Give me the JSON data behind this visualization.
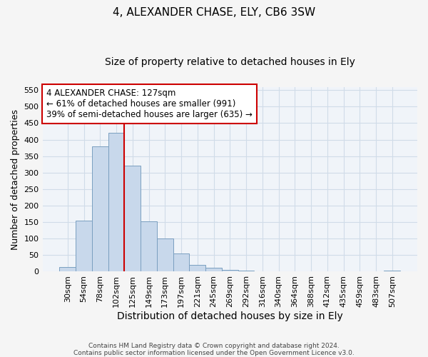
{
  "title": "4, ALEXANDER CHASE, ELY, CB6 3SW",
  "subtitle": "Size of property relative to detached houses in Ely",
  "xlabel": "Distribution of detached houses by size in Ely",
  "ylabel": "Number of detached properties",
  "footnote": "Contains HM Land Registry data © Crown copyright and database right 2024.\nContains public sector information licensed under the Open Government Licence v3.0.",
  "bar_labels": [
    "30sqm",
    "54sqm",
    "78sqm",
    "102sqm",
    "125sqm",
    "149sqm",
    "173sqm",
    "197sqm",
    "221sqm",
    "245sqm",
    "269sqm",
    "292sqm",
    "316sqm",
    "340sqm",
    "364sqm",
    "388sqm",
    "412sqm",
    "435sqm",
    "459sqm",
    "483sqm",
    "507sqm"
  ],
  "bar_values": [
    14,
    155,
    380,
    420,
    322,
    152,
    100,
    55,
    20,
    12,
    5,
    3,
    1,
    1,
    1,
    1,
    1,
    1,
    1,
    1,
    3
  ],
  "bar_color": "#c8d8eb",
  "bar_edge_color": "#7a9fc0",
  "vline_color": "#cc0000",
  "annotation_text": "4 ALEXANDER CHASE: 127sqm\n← 61% of detached houses are smaller (991)\n39% of semi-detached houses are larger (635) →",
  "annotation_box_color": "#ffffff",
  "annotation_box_edge": "#cc0000",
  "ylim": [
    0,
    560
  ],
  "yticks": [
    0,
    50,
    100,
    150,
    200,
    250,
    300,
    350,
    400,
    450,
    500,
    550
  ],
  "background_color": "#f5f5f5",
  "plot_bg_color": "#f0f4f9",
  "grid_color": "#d0dce8",
  "title_fontsize": 11,
  "subtitle_fontsize": 10,
  "tick_fontsize": 8,
  "ylabel_fontsize": 9,
  "xlabel_fontsize": 10,
  "vline_bar_index": 4
}
